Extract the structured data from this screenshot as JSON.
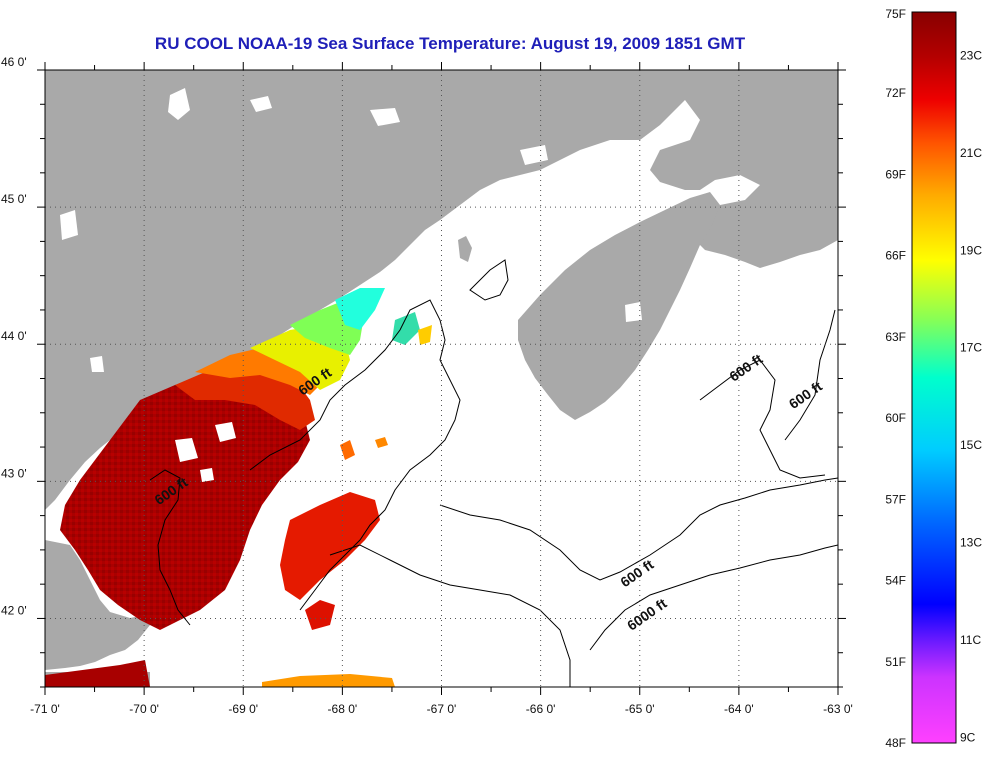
{
  "title": "RU COOL  NOAA-19  Sea Surface Temperature:  August 19, 2009 1851 GMT",
  "map": {
    "lon_ticks": [
      -71,
      -70,
      -69,
      -68,
      -67,
      -66,
      -65,
      -64,
      -63
    ],
    "lat_ticks": [
      46,
      45,
      44,
      43,
      42
    ],
    "lon_labels": [
      "-71 0'",
      "-70 0'",
      "-69 0'",
      "-68 0'",
      "-67 0'",
      "-66 0'",
      "-65 0'",
      "-64 0'",
      "-63 0'"
    ],
    "lat_labels": [
      "46 0'",
      "45 0'",
      "44 0'",
      "43 0'",
      "42 0'"
    ],
    "lon_range": [
      -71,
      -63
    ],
    "lat_range": [
      41.5,
      46.0
    ],
    "grid": true,
    "land_color": "#a9a9a9",
    "contour_labels": [
      {
        "text": "600 ft",
        "lon": -68.25,
        "lat": 43.7
      },
      {
        "text": "600 ft",
        "lon": -69.7,
        "lat": 42.9
      },
      {
        "text": "600 ft",
        "lon": -63.9,
        "lat": 43.8
      },
      {
        "text": "600 ft",
        "lon": -63.3,
        "lat": 43.6
      },
      {
        "text": "600 ft",
        "lon": -65.0,
        "lat": 42.3
      },
      {
        "text": "6000 ft",
        "lon": -64.9,
        "lat": 42.0
      }
    ]
  },
  "colorbar": {
    "colors": [
      "#ff40ff",
      "#9933ff",
      "#0000ff",
      "#00aaff",
      "#00ffdd",
      "#aaff44",
      "#ffff00",
      "#ffaa00",
      "#ff5500",
      "#ee0000",
      "#aa0000",
      "#880000"
    ],
    "fahrenheit_labels": [
      "75F",
      "72F",
      "69F",
      "66F",
      "63F",
      "60F",
      "57F",
      "54F",
      "51F",
      "48F"
    ],
    "fahrenheit_values": [
      75,
      72,
      69,
      66,
      63,
      60,
      57,
      54,
      51,
      48
    ],
    "celsius_labels": [
      "23C",
      "21C",
      "19C",
      "17C",
      "15C",
      "13C",
      "11C",
      "9C"
    ],
    "celsius_values": [
      23,
      21,
      19,
      17,
      15,
      13,
      11,
      9
    ],
    "range_f": [
      48,
      75
    ]
  }
}
